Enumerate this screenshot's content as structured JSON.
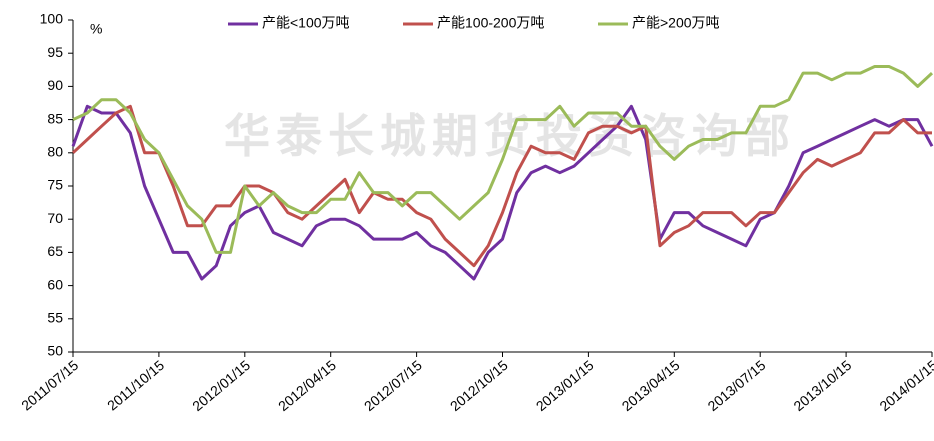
{
  "chart_data": {
    "type": "line",
    "unit_label": "%",
    "watermark": "华泰长城期货投资咨询部",
    "categories": [
      "2011/07/15",
      null,
      null,
      null,
      null,
      null,
      "2011/10/15",
      null,
      null,
      null,
      null,
      null,
      "2012/01/15",
      null,
      null,
      null,
      null,
      null,
      "2012/04/15",
      null,
      null,
      null,
      null,
      null,
      "2012/07/15",
      null,
      null,
      null,
      null,
      null,
      "2012/10/15",
      null,
      null,
      null,
      null,
      null,
      "2013/01/15",
      null,
      null,
      null,
      null,
      null,
      "2013/04/15",
      null,
      null,
      null,
      null,
      null,
      "2013/07/15",
      null,
      null,
      null,
      null,
      null,
      "2013/10/15",
      null,
      null,
      null,
      null,
      null,
      "2014/01/15"
    ],
    "series": [
      {
        "name": "产能<100万吨",
        "color": "#7030a0",
        "values": [
          81,
          87,
          86,
          86,
          83,
          75,
          70,
          65,
          65,
          61,
          63,
          69,
          71,
          72,
          68,
          67,
          66,
          69,
          70,
          70,
          69,
          67,
          67,
          67,
          68,
          66,
          65,
          63,
          61,
          65,
          67,
          74,
          77,
          78,
          77,
          78,
          80,
          82,
          84,
          87,
          82,
          67,
          71,
          71,
          69,
          68,
          67,
          66,
          70,
          71,
          75,
          80,
          81,
          82,
          83,
          84,
          85,
          84,
          85,
          85,
          81
        ]
      },
      {
        "name": "产能100-200万吨",
        "color": "#c0504d",
        "values": [
          80,
          82,
          84,
          86,
          87,
          80,
          80,
          75,
          69,
          69,
          72,
          72,
          75,
          75,
          74,
          71,
          70,
          72,
          74,
          76,
          71,
          74,
          73,
          73,
          71,
          70,
          67,
          65,
          63,
          66,
          71,
          77,
          81,
          80,
          80,
          79,
          83,
          84,
          84,
          83,
          84,
          66,
          68,
          69,
          71,
          71,
          71,
          69,
          71,
          71,
          74,
          77,
          79,
          78,
          79,
          80,
          83,
          83,
          85,
          83,
          83
        ]
      },
      {
        "name": "产能>200万吨",
        "color": "#9bbb59",
        "values": [
          85,
          86,
          88,
          88,
          86,
          82,
          80,
          76,
          72,
          70,
          65,
          65,
          75,
          72,
          74,
          72,
          71,
          71,
          73,
          73,
          77,
          74,
          74,
          72,
          74,
          74,
          72,
          70,
          72,
          74,
          79,
          85,
          85,
          85,
          87,
          84,
          86,
          86,
          86,
          84,
          84,
          81,
          79,
          81,
          82,
          82,
          83,
          83,
          87,
          87,
          88,
          92,
          92,
          91,
          92,
          92,
          93,
          93,
          92,
          90,
          92
        ]
      }
    ],
    "ylim": [
      50,
      100
    ],
    "yticks": [
      50,
      55,
      60,
      65,
      70,
      75,
      80,
      85,
      90,
      95,
      100
    ]
  }
}
